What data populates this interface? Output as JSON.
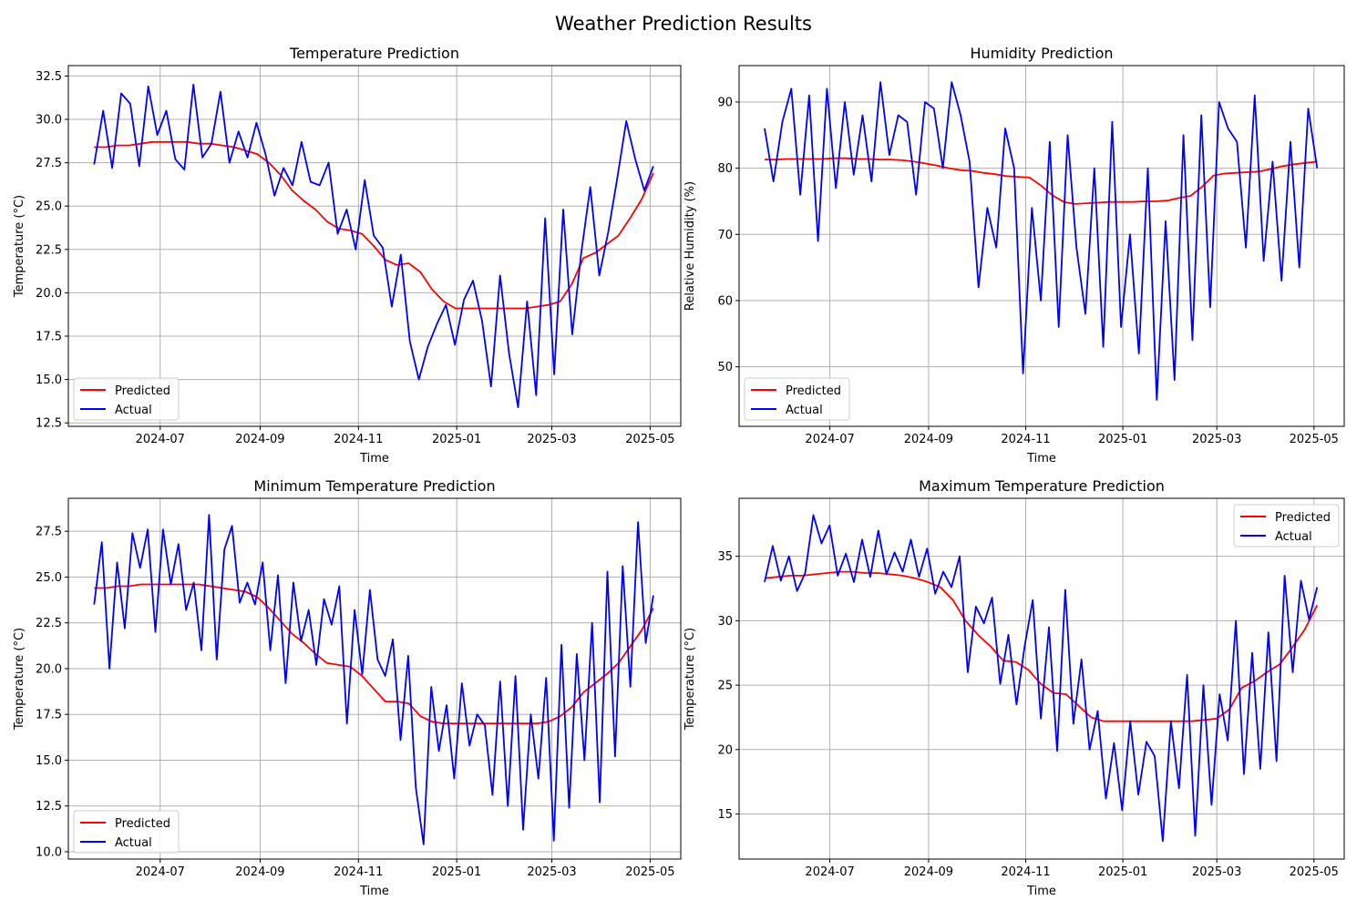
{
  "suptitle": "Weather Prediction Results",
  "colors": {
    "predicted": "#ff0000",
    "actual": "#0000ff",
    "grid": "#b0b0b0"
  },
  "x_ticks": [
    "2024-07",
    "2024-09",
    "2024-11",
    "2025-01",
    "2025-03",
    "2025-05"
  ],
  "x_tick_dates": [
    "2024-07-01",
    "2024-09-01",
    "2024-11-01",
    "2025-01-01",
    "2025-03-01",
    "2025-05-01"
  ],
  "chart_data": [
    {
      "type": "line",
      "title": "Temperature Prediction",
      "xlabel": "Time",
      "ylabel": "Temperature (°C)",
      "xlim": [
        "2024-05-05",
        "2025-05-20"
      ],
      "ylim": [
        12.3,
        33.1
      ],
      "yticks": [
        "12.5",
        "15.0",
        "17.5",
        "20.0",
        "22.5",
        "25.0",
        "27.5",
        "30.0",
        "32.5"
      ],
      "grid": true,
      "legend": "lower-left",
      "x_start": "2024-05-21",
      "x_end": "2025-05-03",
      "series": [
        {
          "name": "Predicted",
          "color": "#ff0000",
          "values": [
            28.4,
            28.4,
            28.5,
            28.5,
            28.6,
            28.7,
            28.7,
            28.7,
            28.7,
            28.6,
            28.6,
            28.5,
            28.4,
            28.2,
            28.0,
            27.5,
            26.8,
            25.9,
            25.3,
            24.8,
            24.1,
            23.7,
            23.6,
            23.4,
            22.7,
            21.9,
            21.6,
            21.7,
            21.2,
            20.2,
            19.5,
            19.1,
            19.1,
            19.1,
            19.1,
            19.1,
            19.1,
            19.1,
            19.2,
            19.3,
            19.5,
            20.5,
            22.0,
            22.3,
            22.8,
            23.3,
            24.3,
            25.4,
            26.9
          ]
        },
        {
          "name": "Actual",
          "color": "#0000ff",
          "values": [
            27.4,
            30.5,
            27.2,
            31.5,
            30.9,
            27.3,
            31.9,
            29.1,
            30.5,
            27.7,
            27.1,
            32.0,
            27.8,
            28.6,
            31.6,
            27.5,
            29.3,
            27.8,
            29.8,
            28.0,
            25.6,
            27.2,
            26.2,
            28.7,
            26.4,
            26.2,
            27.5,
            23.4,
            24.8,
            22.5,
            26.5,
            23.3,
            22.6,
            19.2,
            22.2,
            17.2,
            15.0,
            16.9,
            18.2,
            19.3,
            17.0,
            19.6,
            20.7,
            18.4,
            14.6,
            21.0,
            16.5,
            13.4,
            19.5,
            14.1,
            24.3,
            15.3,
            24.8,
            17.6,
            22.3,
            26.1,
            21.0,
            23.5,
            26.6,
            29.9,
            27.7,
            25.9,
            27.3
          ]
        }
      ]
    },
    {
      "type": "line",
      "title": "Humidity Prediction",
      "xlabel": "Time",
      "ylabel": "Relative Humidity (%)",
      "xlim": [
        "2024-05-05",
        "2025-05-20"
      ],
      "ylim": [
        41,
        95.5
      ],
      "yticks": [
        "50",
        "60",
        "70",
        "80",
        "90"
      ],
      "grid": true,
      "legend": "lower-left",
      "x_start": "2024-05-21",
      "x_end": "2025-05-03",
      "series": [
        {
          "name": "Predicted",
          "color": "#ff0000",
          "values": [
            81.3,
            81.3,
            81.4,
            81.4,
            81.4,
            81.4,
            81.5,
            81.5,
            81.4,
            81.4,
            81.3,
            81.3,
            81.2,
            81.0,
            80.7,
            80.4,
            80.0,
            79.7,
            79.6,
            79.3,
            79.1,
            78.8,
            78.7,
            78.6,
            77.4,
            75.9,
            74.9,
            74.6,
            74.7,
            74.8,
            74.9,
            74.9,
            74.9,
            75.0,
            75.0,
            75.1,
            75.5,
            75.8,
            77.2,
            78.9,
            79.2,
            79.3,
            79.4,
            79.5,
            79.9,
            80.3,
            80.6,
            80.8,
            81.0
          ]
        },
        {
          "name": "Actual",
          "color": "#0000ff",
          "values": [
            86,
            78,
            87,
            92,
            76,
            91,
            69,
            92,
            77,
            90,
            79,
            88,
            78,
            93,
            82,
            88,
            87,
            76,
            90,
            89,
            80,
            93,
            88,
            81,
            62,
            74,
            68,
            86,
            80,
            49,
            74,
            60,
            84,
            56,
            85,
            68,
            58,
            80,
            53,
            87,
            56,
            70,
            52,
            80,
            45,
            72,
            48,
            85,
            54,
            88,
            59,
            90,
            86,
            84,
            68,
            91,
            66,
            81,
            63,
            84,
            65,
            89,
            80
          ]
        }
      ]
    },
    {
      "type": "line",
      "title": "Minimum Temperature Prediction",
      "xlabel": "Time",
      "ylabel": "Temperature (°C)",
      "xlim": [
        "2024-05-05",
        "2025-05-20"
      ],
      "ylim": [
        9.6,
        29.3
      ],
      "yticks": [
        "10.0",
        "12.5",
        "15.0",
        "17.5",
        "20.0",
        "22.5",
        "25.0",
        "27.5"
      ],
      "grid": true,
      "legend": "lower-left",
      "x_start": "2024-05-21",
      "x_end": "2025-05-03",
      "series": [
        {
          "name": "Predicted",
          "color": "#ff0000",
          "values": [
            24.4,
            24.4,
            24.5,
            24.5,
            24.6,
            24.6,
            24.6,
            24.6,
            24.6,
            24.6,
            24.5,
            24.4,
            24.3,
            24.2,
            23.9,
            23.3,
            22.6,
            21.9,
            21.4,
            20.8,
            20.3,
            20.2,
            20.1,
            19.6,
            18.9,
            18.2,
            18.2,
            18.1,
            17.4,
            17.1,
            17.0,
            17.0,
            17.0,
            17.0,
            17.0,
            17.0,
            17.0,
            17.0,
            17.0,
            17.1,
            17.4,
            17.9,
            18.7,
            19.2,
            19.7,
            20.3,
            21.2,
            22.1,
            23.3
          ]
        },
        {
          "name": "Actual",
          "color": "#0000ff",
          "values": [
            23.5,
            26.9,
            20.0,
            25.8,
            22.2,
            27.4,
            25.5,
            27.6,
            22.0,
            27.6,
            24.6,
            26.8,
            23.2,
            24.7,
            21.0,
            28.4,
            20.5,
            26.5,
            27.8,
            23.6,
            24.7,
            23.5,
            25.8,
            21.0,
            25.1,
            19.2,
            24.7,
            21.5,
            23.2,
            20.2,
            23.8,
            22.4,
            24.5,
            17.0,
            23.2,
            19.7,
            24.3,
            20.5,
            19.6,
            21.6,
            16.1,
            20.7,
            13.5,
            10.4,
            19.0,
            15.5,
            18.0,
            14.0,
            19.2,
            15.8,
            17.5,
            16.9,
            13.1,
            19.3,
            12.5,
            19.6,
            11.2,
            17.5,
            14.0,
            19.5,
            10.6,
            21.3,
            12.4,
            20.8,
            15.0,
            22.5,
            12.7,
            25.3,
            15.2,
            25.6,
            19.0,
            28.0,
            21.4,
            24.0
          ]
        }
      ]
    },
    {
      "type": "line",
      "title": "Maximum Temperature Prediction",
      "xlabel": "Time",
      "ylabel": "Temperature (°C)",
      "xlim": [
        "2024-05-05",
        "2025-05-20"
      ],
      "ylim": [
        11.5,
        39.5
      ],
      "yticks": [
        "15",
        "20",
        "25",
        "30",
        "35"
      ],
      "grid": true,
      "legend": "upper-right",
      "x_start": "2024-05-21",
      "x_end": "2025-05-03",
      "series": [
        {
          "name": "Predicted",
          "color": "#ff0000",
          "values": [
            33.3,
            33.4,
            33.5,
            33.5,
            33.6,
            33.7,
            33.8,
            33.8,
            33.7,
            33.7,
            33.6,
            33.5,
            33.3,
            33.0,
            32.6,
            31.6,
            30.0,
            28.9,
            28.0,
            26.9,
            26.8,
            26.2,
            25.1,
            24.4,
            24.3,
            23.4,
            22.5,
            22.2,
            22.2,
            22.2,
            22.2,
            22.2,
            22.2,
            22.2,
            22.2,
            22.3,
            22.4,
            23.1,
            24.8,
            25.3,
            26.0,
            26.6,
            27.9,
            29.3,
            31.2
          ]
        },
        {
          "name": "Actual",
          "color": "#0000ff",
          "values": [
            33.0,
            35.8,
            33.1,
            35.0,
            32.3,
            33.7,
            38.2,
            36.0,
            37.4,
            33.5,
            35.2,
            33.0,
            36.3,
            33.4,
            37.0,
            33.6,
            35.3,
            33.8,
            36.3,
            33.4,
            35.6,
            32.1,
            33.8,
            32.6,
            35.0,
            26.0,
            31.1,
            29.8,
            31.8,
            25.1,
            28.9,
            23.5,
            28.0,
            31.6,
            22.4,
            29.5,
            19.9,
            32.4,
            22.0,
            27.0,
            20.0,
            23.0,
            16.2,
            20.5,
            15.3,
            22.2,
            16.5,
            20.6,
            19.5,
            12.9,
            22.2,
            17.0,
            25.8,
            13.3,
            25.0,
            15.7,
            24.3,
            20.7,
            30.0,
            18.1,
            27.5,
            18.5,
            29.1,
            19.1,
            33.5,
            26.0,
            33.1,
            30.1,
            32.6
          ]
        }
      ]
    }
  ]
}
